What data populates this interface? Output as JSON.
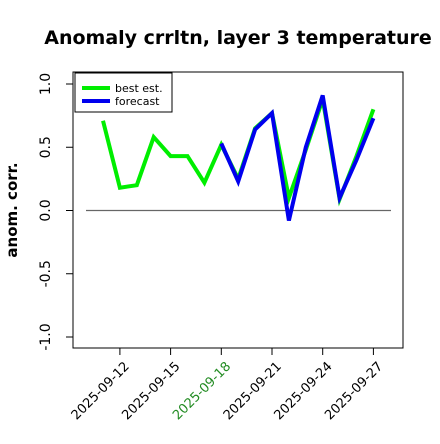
{
  "chart_data": {
    "type": "line",
    "title": "Anomaly crrltn, layer 3 temperature",
    "ylabel": "anom. corr.",
    "xlabel": "",
    "ylim": [
      -1.0,
      1.0
    ],
    "yticks": [
      "-1.0",
      "-0.5",
      "0.0",
      "0.5",
      "1.0"
    ],
    "x": [
      "2025-09-11",
      "2025-09-12",
      "2025-09-13",
      "2025-09-14",
      "2025-09-15",
      "2025-09-16",
      "2025-09-17",
      "2025-09-18",
      "2025-09-19",
      "2025-09-20",
      "2025-09-21",
      "2025-09-22",
      "2025-09-23",
      "2025-09-24",
      "2025-09-25",
      "2025-09-26",
      "2025-09-27"
    ],
    "xtick_labels": [
      "2025-09-12",
      "2025-09-15",
      "2025-09-18",
      "2025-09-21",
      "2025-09-24",
      "2025-09-27"
    ],
    "highlight_tick": "2025-09-18",
    "highlight_color": "#228B22",
    "reference_line_y": 0.0,
    "legend_position": "top-left",
    "series": [
      {
        "name": "best est.",
        "color": "#00ee00",
        "values": [
          0.71,
          0.18,
          0.2,
          0.58,
          0.43,
          0.43,
          0.22,
          0.52,
          0.25,
          0.65,
          0.77,
          0.1,
          0.48,
          0.88,
          0.09,
          0.43,
          0.8
        ]
      },
      {
        "name": "forecast",
        "color": "#0000ee",
        "values": [
          null,
          null,
          null,
          null,
          null,
          null,
          null,
          0.53,
          0.23,
          0.64,
          0.77,
          -0.08,
          0.5,
          0.91,
          0.1,
          0.4,
          0.73
        ]
      }
    ]
  }
}
